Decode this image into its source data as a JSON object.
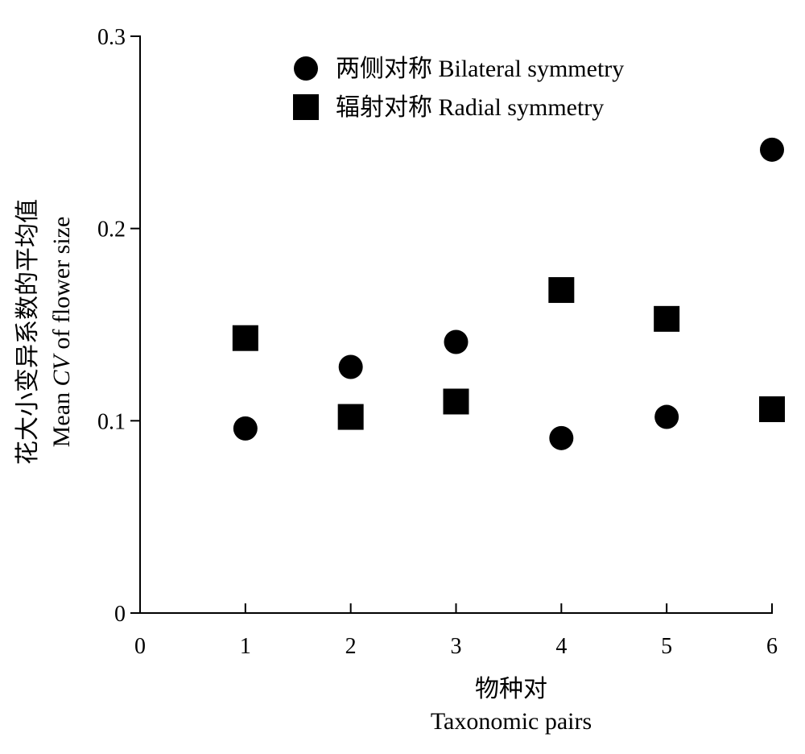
{
  "chart_data": {
    "type": "scatter",
    "x": [
      1,
      2,
      3,
      4,
      5,
      6
    ],
    "series": [
      {
        "name": "两侧对称 Bilateral symmetry",
        "marker": "circle",
        "color": "#000000",
        "values": [
          0.096,
          0.128,
          0.141,
          0.091,
          0.102,
          0.241
        ]
      },
      {
        "name": "辐射对称 Radial symmetry",
        "marker": "square",
        "color": "#000000",
        "values": [
          0.143,
          0.102,
          0.11,
          0.168,
          0.153,
          0.106
        ]
      }
    ],
    "xlabel_cn": "物种对",
    "xlabel_en": "Taxonomic pairs",
    "ylabel_cn": "花大小变异系数的平均值",
    "ylabel_en_prefix": "Mean ",
    "ylabel_en_italic": "CV",
    "ylabel_en_suffix": " of flower size",
    "xlim": [
      0,
      6
    ],
    "ylim": [
      0,
      0.3
    ],
    "x_ticks": [
      "0",
      "1",
      "2",
      "3",
      "4",
      "5",
      "6"
    ],
    "y_ticks": [
      "0",
      "0.1",
      "0.2",
      "0.3"
    ],
    "legend_position": "top",
    "grid": false
  }
}
